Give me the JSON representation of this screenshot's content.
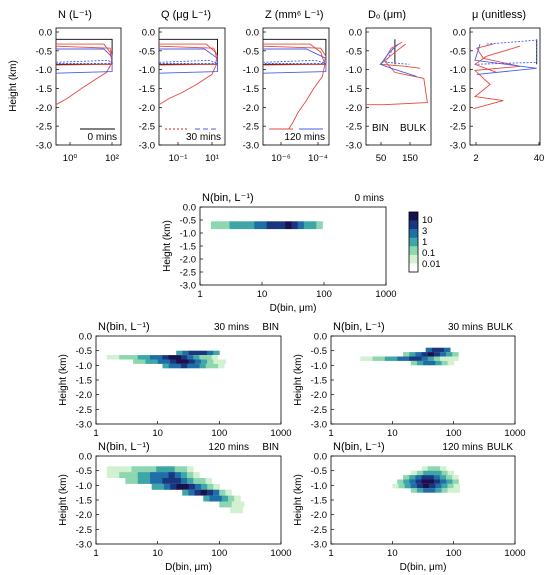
{
  "colors": {
    "bin": "#e8483f",
    "bulk": "#4a5ee8",
    "initial": "#000000",
    "cmap": [
      "#ffffff",
      "#d2f1d0",
      "#8cd6b0",
      "#3ea6a7",
      "#1f6fa6",
      "#19377e",
      "#1a1050"
    ]
  },
  "common": {
    "height_label": "Height (km)",
    "height_ticks": [
      "0.0",
      "-0.5",
      "-1.0",
      "-1.5",
      "-2.0",
      "-2.5",
      "-3.0"
    ],
    "diam_label": "D(bin, μm)",
    "diam_ticks": [
      "1",
      "10",
      "100",
      "1000"
    ]
  },
  "chart_data": [
    {
      "type": "line",
      "panel": "N",
      "title": "N (L⁻¹)",
      "xscale": "log",
      "xlim": [
        0.3,
        400
      ],
      "ylim": [
        -3.0,
        -0.1
      ],
      "xticks": [
        "10⁰",
        "10²"
      ],
      "annotation": "0 mins",
      "legend": "initial line bottom-right",
      "series": [
        {
          "style": "initial",
          "x": [
            0.3,
            150,
            150,
            0.3
          ],
          "y": [
            -0.38,
            -0.38,
            -1.0,
            -1.0
          ]
        },
        {
          "style": "bin",
          "x": [
            0.3,
            60,
            120,
            150,
            80,
            20,
            5,
            1,
            0.3
          ],
          "y": [
            -0.5,
            -0.5,
            -0.7,
            -0.95,
            -1.2,
            -1.4,
            -1.6,
            -1.85,
            -2.0
          ]
        },
        {
          "style": "bin",
          "x": [
            0.3,
            120,
            150,
            130,
            0.3
          ],
          "y": [
            -0.55,
            -0.6,
            -0.8,
            -1.0,
            -1.02
          ]
        },
        {
          "style": "bulk",
          "x": [
            0.3,
            60,
            150,
            150,
            0.3
          ],
          "y": [
            -0.62,
            -0.62,
            -0.82,
            -1.18,
            -1.22
          ]
        },
        {
          "style": "bulk_dot",
          "x": [
            0.3,
            100,
            150,
            0.3
          ],
          "y": [
            -0.95,
            -0.9,
            -0.98,
            -0.98
          ]
        }
      ]
    },
    {
      "type": "line",
      "panel": "Q",
      "title": "Q (μg L⁻¹)",
      "xscale": "log",
      "xlim": [
        0.03,
        100
      ],
      "ylim": [
        -3.0,
        -0.1
      ],
      "xticks": [
        "10⁻¹",
        "10¹"
      ],
      "annotation": "30 mins",
      "legend": "bin and bulk dashed bottom-right",
      "series": [
        {
          "style": "initial",
          "x": [
            0.03,
            40,
            40,
            0.03
          ],
          "y": [
            -0.38,
            -0.38,
            -1.0,
            -1.0
          ]
        },
        {
          "style": "bin",
          "x": [
            0.03,
            10,
            30,
            40,
            20,
            3,
            0.5,
            0.1,
            0.03
          ],
          "y": [
            -0.5,
            -0.5,
            -0.7,
            -0.95,
            -1.25,
            -1.5,
            -1.7,
            -1.85,
            -2.0
          ]
        },
        {
          "style": "bin",
          "x": [
            0.03,
            25,
            40,
            30,
            0.03
          ],
          "y": [
            -0.55,
            -0.6,
            -0.8,
            -1.0,
            -1.02
          ]
        },
        {
          "style": "bulk",
          "x": [
            0.03,
            8,
            40,
            40,
            0.03
          ],
          "y": [
            -0.62,
            -0.62,
            -0.85,
            -1.18,
            -1.22
          ]
        },
        {
          "style": "bulk_dot",
          "x": [
            0.03,
            15,
            40,
            0.03
          ],
          "y": [
            -0.95,
            -0.9,
            -0.98,
            -0.98
          ]
        }
      ]
    },
    {
      "type": "line",
      "panel": "Z",
      "title": "Z (mm⁶ L⁻¹)",
      "xscale": "log",
      "xlim": [
        1e-07,
        0.0006
      ],
      "ylim": [
        -3.0,
        -0.1
      ],
      "xticks": [
        "10⁻⁶",
        "10⁻⁴"
      ],
      "annotation": "120 mins",
      "legend": "bin and bulk bottom-left",
      "series": [
        {
          "style": "initial",
          "x": [
            1e-07,
            0.0004,
            0.0004,
            1e-07
          ],
          "y": [
            -0.38,
            -0.38,
            -1.0,
            -1.0
          ]
        },
        {
          "style": "bin",
          "x": [
            1e-07,
            5e-05,
            0.0002,
            0.00035,
            0.00025,
            8e-05,
            3e-05,
            1e-05,
            5e-06,
            3e-06
          ],
          "y": [
            -0.5,
            -0.5,
            -0.7,
            -1.0,
            -1.3,
            -1.6,
            -1.9,
            -2.2,
            -2.45,
            -2.6
          ]
        },
        {
          "style": "bin",
          "x": [
            1e-07,
            0.0002,
            0.0004,
            0.0003,
            1e-07
          ],
          "y": [
            -0.55,
            -0.6,
            -0.8,
            -1.0,
            -1.02
          ]
        },
        {
          "style": "bulk",
          "x": [
            1e-07,
            3e-05,
            0.0004,
            0.0004,
            1e-07
          ],
          "y": [
            -0.62,
            -0.62,
            -0.85,
            -1.18,
            -1.22
          ]
        },
        {
          "style": "bulk_dot",
          "x": [
            1e-07,
            0.0001,
            0.0004,
            1e-07
          ],
          "y": [
            -0.95,
            -0.9,
            -0.98,
            -0.98
          ]
        }
      ]
    },
    {
      "type": "line",
      "panel": "DQ",
      "title": "Dₒ (μm)",
      "xscale": "linear",
      "xlim": [
        20,
        200
      ],
      "ylim": [
        -3.0,
        -0.1
      ],
      "xticks": [
        "50",
        "150"
      ],
      "legend_labels": [
        "BIN",
        "BULK"
      ],
      "legend": "bottom",
      "series": [
        {
          "style": "initial",
          "x": [
            100,
            100
          ],
          "y": [
            -0.38,
            -1.0
          ]
        },
        {
          "style": "bin",
          "x": [
            120,
            90,
            70,
            100,
            180,
            190,
            70,
            20
          ],
          "y": [
            -0.45,
            -0.6,
            -0.9,
            -1.2,
            -1.35,
            -1.95,
            -2.0,
            -2.0
          ]
        },
        {
          "style": "bin",
          "x": [
            130,
            100,
            60,
            130,
            170
          ],
          "y": [
            -0.5,
            -0.7,
            -1.0,
            -1.05,
            -1.1
          ]
        },
        {
          "style": "bulk",
          "x": [
            110,
            85,
            60,
            90,
            160
          ],
          "y": [
            -0.5,
            -0.7,
            -1.0,
            -1.1,
            -1.3
          ]
        },
        {
          "style": "bulk_dot",
          "x": [
            95,
            75,
            140
          ],
          "y": [
            -0.6,
            -0.95,
            -1.0
          ]
        }
      ]
    },
    {
      "type": "line",
      "panel": "mu",
      "title": "μ (unitless)",
      "xscale": "linear",
      "xlim": [
        0,
        42
      ],
      "ylim": [
        -3.0,
        -0.1
      ],
      "xticks": [
        "2",
        "40"
      ],
      "series": [
        {
          "style": "initial",
          "x": [
            40,
            40
          ],
          "y": [
            -0.38,
            -1.0
          ]
        },
        {
          "style": "bin",
          "x": [
            14,
            4,
            8,
            30,
            3,
            12,
            3,
            20,
            2
          ],
          "y": [
            -0.5,
            -0.6,
            -0.85,
            -1.05,
            -1.15,
            -1.5,
            -1.8,
            -1.9,
            -2.1
          ]
        },
        {
          "style": "bin",
          "x": [
            30,
            10,
            3,
            16
          ],
          "y": [
            -0.55,
            -0.8,
            -1.0,
            -1.2
          ]
        },
        {
          "style": "bulk",
          "x": [
            6,
            3,
            40,
            4
          ],
          "y": [
            -0.5,
            -0.9,
            -1.1,
            -1.25
          ]
        },
        {
          "style": "bulk_dot",
          "x": [
            10,
            40,
            40,
            3
          ],
          "y": [
            -0.5,
            -0.4,
            -0.95,
            -1.0
          ]
        }
      ]
    },
    {
      "type": "heatmap",
      "panel": "N_bin_0",
      "title": "N(bin, L⁻¹)",
      "annotation": "0 mins",
      "xscale": "log",
      "xlim": [
        1,
        1000
      ],
      "ylim": [
        -3.0,
        0.0
      ],
      "colorbar": {
        "ticks": [
          "10",
          "3",
          "1",
          "0.1",
          "0.01"
        ]
      },
      "rows": [
        {
          "y0": -0.85,
          "y1": -0.55,
          "x0": 1.5,
          "cells": [
            2,
            2,
            2,
            3,
            3,
            3,
            3,
            4,
            4,
            5,
            5,
            5,
            6,
            5,
            4,
            3,
            3,
            2
          ]
        }
      ]
    },
    {
      "type": "heatmap",
      "panel": "N_bin_30_BIN",
      "title": "N(bin, L⁻¹)",
      "annotation": "30 mins",
      "label": "BIN",
      "xscale": "log",
      "xlim": [
        1,
        1000
      ],
      "ylim": [
        -3.0,
        0.0
      ],
      "rows": [
        {
          "y0": -0.65,
          "y1": -0.5,
          "x0": 20,
          "cells": [
            3,
            4,
            5,
            5,
            5,
            4,
            3
          ]
        },
        {
          "y0": -0.8,
          "y1": -0.65,
          "x0": 1.5,
          "cells": [
            1,
            1,
            2,
            2,
            2,
            3,
            3,
            4,
            4,
            5,
            6,
            6,
            5,
            4,
            3,
            2,
            2,
            1
          ]
        },
        {
          "y0": -0.95,
          "y1": -0.8,
          "x0": 4,
          "cells": [
            2,
            2,
            3,
            3,
            4,
            4,
            5,
            6,
            6,
            5,
            4,
            3,
            2,
            1,
            1
          ]
        },
        {
          "y0": -1.1,
          "y1": -0.95,
          "x0": 12,
          "cells": [
            3,
            4,
            4,
            5,
            4,
            4,
            3,
            2,
            2,
            1
          ]
        }
      ]
    },
    {
      "type": "heatmap",
      "panel": "N_bin_30_BULK",
      "title": "N(bin, L⁻¹)",
      "annotation": "30 mins",
      "label": "BULK",
      "xscale": "log",
      "xlim": [
        1,
        1000
      ],
      "ylim": [
        -3.0,
        0.0
      ],
      "rows": [
        {
          "y0": -0.55,
          "y1": -0.4,
          "x0": 35,
          "cells": [
            4,
            5,
            5,
            4
          ]
        },
        {
          "y0": -0.7,
          "y1": -0.55,
          "x0": 15,
          "cells": [
            2,
            3,
            4,
            5,
            6,
            5,
            4,
            3,
            2
          ]
        },
        {
          "y0": -0.85,
          "y1": -0.7,
          "x0": 3,
          "cells": [
            1,
            1,
            2,
            2,
            3,
            3,
            4,
            4,
            5,
            5,
            4,
            3,
            2,
            1,
            1,
            1
          ]
        },
        {
          "y0": -1.0,
          "y1": -0.85,
          "x0": 20,
          "cells": [
            2,
            3,
            4,
            4,
            3,
            2,
            1
          ]
        }
      ]
    },
    {
      "type": "heatmap",
      "panel": "N_bin_120_BIN",
      "title": "N(bin, L⁻¹)",
      "annotation": "120 mins",
      "label": "BIN",
      "xscale": "log",
      "xlim": [
        1,
        1000
      ],
      "ylim": [
        -3.0,
        0.0
      ],
      "rows": [
        {
          "y0": -0.55,
          "y1": -0.35,
          "x0": 1.5,
          "cells": [
            1,
            1,
            1,
            1,
            2,
            2,
            2,
            2,
            3,
            3,
            3,
            2,
            2,
            1
          ]
        },
        {
          "y0": -0.75,
          "y1": -0.55,
          "x0": 1.5,
          "cells": [
            1,
            1,
            2,
            2,
            2,
            3,
            3,
            4,
            4,
            4,
            5,
            4,
            3,
            2,
            1
          ]
        },
        {
          "y0": -0.95,
          "y1": -0.75,
          "x0": 3,
          "cells": [
            2,
            2,
            3,
            3,
            4,
            4,
            5,
            5,
            5,
            4,
            3,
            2,
            2,
            1
          ]
        },
        {
          "y0": -1.15,
          "y1": -0.95,
          "x0": 8,
          "cells": [
            3,
            3,
            4,
            5,
            6,
            6,
            5,
            4,
            3,
            2,
            1
          ]
        },
        {
          "y0": -1.35,
          "y1": -1.15,
          "x0": 25,
          "cells": [
            3,
            4,
            5,
            6,
            5,
            4,
            2,
            1
          ]
        },
        {
          "y0": -1.55,
          "y1": -1.35,
          "x0": 55,
          "cells": [
            3,
            4,
            4,
            3,
            2,
            1
          ]
        },
        {
          "y0": -1.75,
          "y1": -1.55,
          "x0": 100,
          "cells": [
            2,
            2,
            1,
            1
          ]
        },
        {
          "y0": -1.95,
          "y1": -1.75,
          "x0": 150,
          "cells": [
            1,
            1
          ]
        }
      ]
    },
    {
      "type": "heatmap",
      "panel": "N_bin_120_BULK",
      "title": "N(bin, L⁻¹)",
      "annotation": "120 mins",
      "label": "BULK",
      "xscale": "log",
      "xlim": [
        1,
        1000
      ],
      "ylim": [
        -3.0,
        0.0
      ],
      "rows": [
        {
          "y0": -0.5,
          "y1": -0.35,
          "x0": 30,
          "cells": [
            1,
            2,
            2,
            1
          ]
        },
        {
          "y0": -0.65,
          "y1": -0.5,
          "x0": 20,
          "cells": [
            1,
            2,
            3,
            3,
            3,
            2,
            1
          ]
        },
        {
          "y0": -0.8,
          "y1": -0.65,
          "x0": 15,
          "cells": [
            2,
            3,
            4,
            5,
            5,
            4,
            3,
            2,
            1
          ]
        },
        {
          "y0": -0.95,
          "y1": -0.8,
          "x0": 12,
          "cells": [
            2,
            3,
            4,
            5,
            6,
            6,
            5,
            4,
            3,
            2
          ]
        },
        {
          "y0": -1.1,
          "y1": -0.95,
          "x0": 10,
          "cells": [
            1,
            2,
            3,
            4,
            5,
            6,
            5,
            4,
            3,
            2,
            1
          ]
        },
        {
          "y0": -1.25,
          "y1": -1.1,
          "x0": 20,
          "cells": [
            2,
            3,
            4,
            4,
            3,
            2,
            1,
            1
          ]
        }
      ]
    }
  ]
}
